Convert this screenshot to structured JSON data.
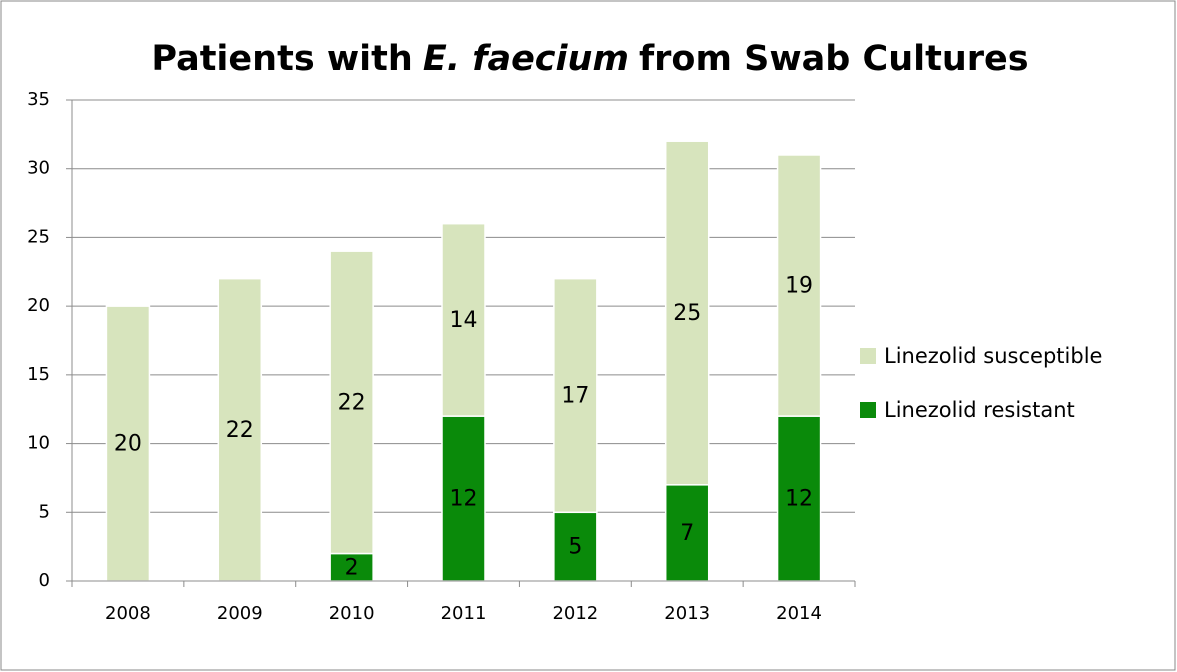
{
  "chart_data": {
    "type": "stacked-bar",
    "title": [
      "Patients with",
      "E. faecium",
      "from Swab Cultures"
    ],
    "title_italic": [
      false,
      true,
      false
    ],
    "categories": [
      "2008",
      "2009",
      "2010",
      "2011",
      "2012",
      "2013",
      "2014"
    ],
    "series": [
      {
        "name": "Linezolid resistant",
        "color": "#0a8a0a",
        "values": [
          null,
          null,
          2,
          12,
          5,
          7,
          12
        ]
      },
      {
        "name": "Linezolid susceptible",
        "color": "#d7e4bd",
        "values": [
          20,
          22,
          22,
          14,
          17,
          25,
          19
        ]
      }
    ],
    "ylim": [
      0,
      35
    ],
    "yticks": [
      0,
      5,
      10,
      15,
      20,
      25,
      30,
      35
    ],
    "grid": true,
    "legend": "right"
  }
}
